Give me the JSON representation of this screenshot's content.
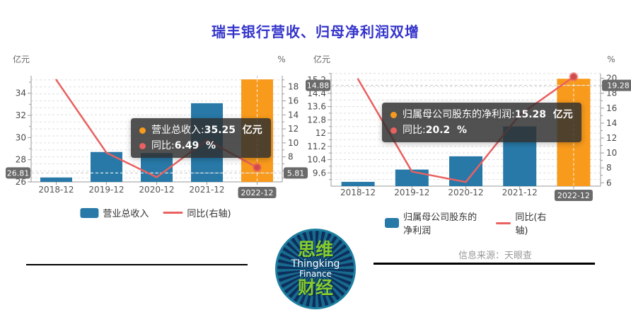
{
  "page": {
    "title": "瑞丰银行营收、归母净利润双增",
    "source": "信息来源：天眼查"
  },
  "logo": {
    "line1": "思维",
    "line2": "Thingking",
    "line3": "Finance",
    "line4": "财经"
  },
  "colors": {
    "title": "#3434cb",
    "bar": "#2879a8",
    "bar_highlight": "#f89a1c",
    "line": "#e96160",
    "dot_fill": "#cf4b4b",
    "tooltip_bg": "rgba(48,48,48,0.84)",
    "badge_bg": "#6a6a6a",
    "axis_line": "#999999",
    "tick_label": "#4a4a4a",
    "x_label": "#555555",
    "grid": "#dddddd",
    "source_text": "#999999",
    "legend_text": "#333333"
  },
  "chart_data": [
    {
      "type": "bar+line",
      "categories": [
        "2018-12",
        "2019-12",
        "2020-12",
        "2021-12",
        "2022-12"
      ],
      "series": [
        {
          "name": "营业总收入",
          "type": "bar",
          "yaxis": "left",
          "unit": "亿元",
          "values": [
            26.4,
            28.7,
            28.6,
            33.1,
            35.25
          ]
        },
        {
          "name": "同比(右轴)",
          "type": "line",
          "yaxis": "right",
          "unit": "%",
          "values": [
            19.0,
            8.6,
            5.1,
            10.4,
            6.49
          ]
        }
      ],
      "highlight_index": 4,
      "left_axis": {
        "title": "亿元",
        "min": 26,
        "max": 35.58,
        "ticks": [
          26,
          28,
          30,
          32,
          34
        ],
        "minor": [
          27,
          29,
          31,
          33,
          35
        ]
      },
      "right_axis": {
        "title": "%",
        "min": 4.43,
        "max": 19.59,
        "ticks": [
          8,
          10,
          12,
          14,
          16,
          18
        ],
        "minor": [
          5,
          6,
          7,
          9,
          11,
          13,
          15,
          17,
          19
        ]
      },
      "grid": {
        "axis": "right",
        "from": 5,
        "to": 19,
        "step": 1
      },
      "crosshair": {
        "left_label": "26.81",
        "right_label": "5.81",
        "left_value": 26.81,
        "category_index": 4
      },
      "tooltip": {
        "rows": [
          {
            "marker_color": "#f89a1c",
            "label": "营业总收入",
            "value": "35.25",
            "unit": "亿元"
          },
          {
            "marker_color": "#e96160",
            "label": "同比",
            "value": "6.49",
            "unit": "%"
          }
        ]
      },
      "legend": [
        {
          "type": "bar",
          "label": "营业总收入"
        },
        {
          "type": "line",
          "label": "同比(右轴)"
        }
      ]
    },
    {
      "type": "bar+line",
      "categories": [
        "2018-12",
        "2019-12",
        "2020-12",
        "2021-12",
        "2022-12"
      ],
      "series": [
        {
          "name": "归属母公司股东的净利润",
          "type": "bar",
          "yaxis": "left",
          "unit": "亿元",
          "values": [
            9.06,
            9.8,
            10.6,
            12.4,
            15.28
          ]
        },
        {
          "name": "同比(右轴)",
          "type": "line",
          "yaxis": "right",
          "unit": "%",
          "values": [
            19.9,
            7.5,
            6.1,
            15.1,
            20.2
          ]
        }
      ],
      "highlight_index": 4,
      "left_axis": {
        "title": "亿元",
        "min": 8.8,
        "max": 15.59,
        "ticks": [
          9.6,
          10.4,
          11.2,
          12,
          12.8,
          13.6,
          14.4,
          15.2
        ],
        "labels": [
          "9.6",
          "10.4",
          "11.2",
          "12",
          "12.8",
          "13.6",
          "14.4",
          "15.2"
        ],
        "minor": [
          9.2,
          10.0,
          10.8,
          11.6,
          12.4,
          13.2,
          14.0,
          14.8,
          15.6
        ]
      },
      "right_axis": {
        "title": "%",
        "min": 5.55,
        "max": 20.63,
        "ticks": [
          6,
          8,
          10,
          12,
          14,
          16,
          18,
          20
        ],
        "minor": [
          7,
          9,
          11,
          13,
          15,
          17,
          19
        ]
      },
      "grid": {
        "axis": "left",
        "from": 9.2,
        "to": 15.6,
        "step": 0.4
      },
      "crosshair": {
        "left_label": "14.88",
        "right_label": "19.28",
        "left_value": 14.88,
        "category_index": 4
      },
      "tooltip": {
        "rows": [
          {
            "marker_color": "#f89a1c",
            "label": "归属母公司股东的净利润",
            "value": "15.28",
            "unit": "亿元"
          },
          {
            "marker_color": "#e96160",
            "label": "同比",
            "value": "20.2",
            "unit": "%"
          }
        ]
      },
      "legend": [
        {
          "type": "bar",
          "label": "归属母公司股东的净利润"
        },
        {
          "type": "line",
          "label": "同比(右轴)"
        }
      ]
    }
  ]
}
